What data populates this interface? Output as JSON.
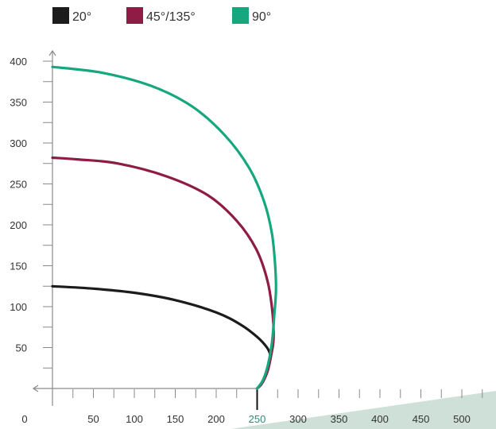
{
  "chart_data": {
    "type": "line",
    "legend": [
      {
        "label": "20°",
        "color": "#1c1c1c"
      },
      {
        "label": "45°/135°",
        "color": "#8e1c44"
      },
      {
        "label": "90°",
        "color": "#17a77f"
      }
    ],
    "legend_position": "top-left",
    "xlim": [
      0,
      520
    ],
    "ylim": [
      0,
      410
    ],
    "x_origin_label": "0",
    "x_ticks": [
      50,
      100,
      150,
      200,
      250,
      300,
      350,
      400,
      450,
      500
    ],
    "x_tick_labels": [
      "50",
      "100",
      "150",
      "200",
      "250",
      "300",
      "350",
      "400",
      "450",
      "500"
    ],
    "y_ticks": [
      50,
      100,
      150,
      200,
      250,
      300,
      350,
      400
    ],
    "y_tick_labels": [
      "50",
      "100",
      "150",
      "200",
      "250",
      "300",
      "350",
      "400"
    ],
    "highlight_x_tick": 250,
    "emitter_x": 250,
    "grid": false,
    "ground_color": "#cfe0d8",
    "series": [
      {
        "name": "20°",
        "color": "#1c1c1c",
        "points": [
          [
            250,
            0
          ],
          [
            255,
            5
          ],
          [
            259,
            14
          ],
          [
            263,
            25
          ],
          [
            265,
            35
          ],
          [
            266,
            41
          ],
          [
            262,
            50
          ],
          [
            250,
            63
          ],
          [
            230,
            78
          ],
          [
            200,
            93
          ],
          [
            150,
            108
          ],
          [
            100,
            117
          ],
          [
            50,
            122
          ],
          [
            0,
            125
          ]
        ]
      },
      {
        "name": "45°/135°",
        "color": "#8e1c44",
        "points": [
          [
            250,
            0
          ],
          [
            257,
            8
          ],
          [
            263,
            22
          ],
          [
            267,
            40
          ],
          [
            270,
            60
          ],
          [
            269,
            90
          ],
          [
            263,
            130
          ],
          [
            249,
            170
          ],
          [
            225,
            205
          ],
          [
            190,
            236
          ],
          [
            140,
            259
          ],
          [
            80,
            275
          ],
          [
            30,
            280
          ],
          [
            0,
            282
          ]
        ]
      },
      {
        "name": "90°",
        "color": "#17a77f",
        "points": [
          [
            250,
            0
          ],
          [
            257,
            10
          ],
          [
            263,
            28
          ],
          [
            268,
            55
          ],
          [
            271,
            90
          ],
          [
            273,
            120
          ],
          [
            272,
            150
          ],
          [
            268,
            190
          ],
          [
            258,
            230
          ],
          [
            240,
            270
          ],
          [
            210,
            310
          ],
          [
            170,
            345
          ],
          [
            120,
            370
          ],
          [
            60,
            386
          ],
          [
            0,
            393
          ]
        ]
      }
    ]
  }
}
